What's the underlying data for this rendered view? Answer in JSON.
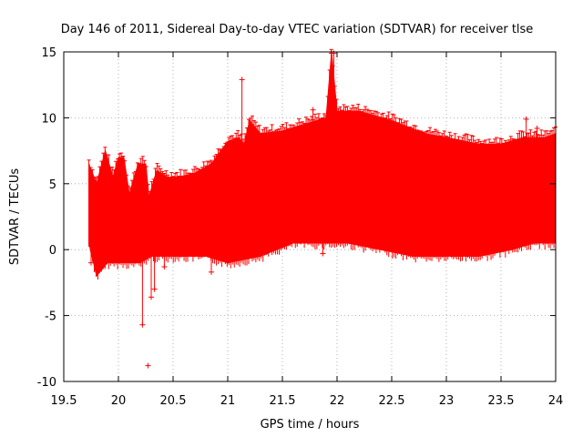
{
  "chart_data": {
    "type": "scatter",
    "title": "Day 146 of 2011, Sidereal Day-to-day VTEC variation (SDTVAR) for receiver tlse",
    "xlabel": "GPS time / hours",
    "ylabel": "SDTVAR / TECUs",
    "xlim": [
      19.5,
      24
    ],
    "ylim": [
      -10,
      15
    ],
    "x_ticks": [
      19.5,
      20,
      20.5,
      21,
      21.5,
      22,
      22.5,
      23,
      23.5,
      24
    ],
    "x_tick_labels": [
      "19.5",
      "20",
      "20.5",
      "21",
      "21.5",
      "22",
      "22.5",
      "23",
      "23.5",
      "24"
    ],
    "y_ticks": [
      -10,
      -5,
      0,
      5,
      10,
      15
    ],
    "y_tick_labels": [
      "-10",
      "-5",
      "0",
      "5",
      "10",
      "15"
    ],
    "grid": true,
    "series": [
      {
        "name": "SDTVAR",
        "color": "#ff0000",
        "style": "errorbars",
        "upper_envelope": [
          {
            "x": 19.73,
            "y": 6.5
          },
          {
            "x": 19.8,
            "y": 5.0
          },
          {
            "x": 19.88,
            "y": 7.5
          },
          {
            "x": 19.95,
            "y": 5.5
          },
          {
            "x": 20.0,
            "y": 7.0
          },
          {
            "x": 20.05,
            "y": 7.0
          },
          {
            "x": 20.1,
            "y": 4.2
          },
          {
            "x": 20.18,
            "y": 6.5
          },
          {
            "x": 20.25,
            "y": 6.5
          },
          {
            "x": 20.28,
            "y": 4.0
          },
          {
            "x": 20.35,
            "y": 6.0
          },
          {
            "x": 20.45,
            "y": 5.5
          },
          {
            "x": 20.55,
            "y": 5.5
          },
          {
            "x": 20.7,
            "y": 5.8
          },
          {
            "x": 20.85,
            "y": 6.5
          },
          {
            "x": 21.0,
            "y": 8.2
          },
          {
            "x": 21.1,
            "y": 8.5
          },
          {
            "x": 21.15,
            "y": 8.0
          },
          {
            "x": 21.2,
            "y": 9.8
          },
          {
            "x": 21.3,
            "y": 8.8
          },
          {
            "x": 21.5,
            "y": 9.0
          },
          {
            "x": 21.7,
            "y": 9.5
          },
          {
            "x": 21.9,
            "y": 10.0
          },
          {
            "x": 21.95,
            "y": 15.0
          },
          {
            "x": 22.0,
            "y": 10.5
          },
          {
            "x": 22.2,
            "y": 10.5
          },
          {
            "x": 22.5,
            "y": 9.8
          },
          {
            "x": 22.8,
            "y": 8.8
          },
          {
            "x": 23.0,
            "y": 8.5
          },
          {
            "x": 23.3,
            "y": 8.0
          },
          {
            "x": 23.5,
            "y": 8.0
          },
          {
            "x": 23.7,
            "y": 8.5
          },
          {
            "x": 23.9,
            "y": 8.5
          },
          {
            "x": 24.0,
            "y": 8.8
          }
        ],
        "lower_envelope": [
          {
            "x": 19.73,
            "y": 0.5
          },
          {
            "x": 19.8,
            "y": -2.0
          },
          {
            "x": 19.9,
            "y": -1.0
          },
          {
            "x": 20.0,
            "y": -1.0
          },
          {
            "x": 20.2,
            "y": -1.0
          },
          {
            "x": 20.3,
            "y": -0.5
          },
          {
            "x": 20.5,
            "y": -0.5
          },
          {
            "x": 20.8,
            "y": -0.5
          },
          {
            "x": 21.0,
            "y": -1.0
          },
          {
            "x": 21.3,
            "y": -0.5
          },
          {
            "x": 21.6,
            "y": 0.5
          },
          {
            "x": 21.9,
            "y": 0.5
          },
          {
            "x": 22.1,
            "y": 0.5
          },
          {
            "x": 22.4,
            "y": 0.0
          },
          {
            "x": 22.7,
            "y": -0.5
          },
          {
            "x": 23.0,
            "y": -0.5
          },
          {
            "x": 23.3,
            "y": -0.5
          },
          {
            "x": 23.6,
            "y": 0.0
          },
          {
            "x": 23.8,
            "y": 0.5
          },
          {
            "x": 24.0,
            "y": 0.5
          }
        ],
        "outliers": [
          {
            "x": 19.75,
            "y": -1.0
          },
          {
            "x": 20.27,
            "y": -8.8
          },
          {
            "x": 20.22,
            "y": -5.7
          },
          {
            "x": 20.3,
            "y": -3.6
          },
          {
            "x": 20.33,
            "y": -3.0
          },
          {
            "x": 20.42,
            "y": -1.3
          },
          {
            "x": 20.85,
            "y": -1.7
          },
          {
            "x": 21.13,
            "y": 12.9
          },
          {
            "x": 21.87,
            "y": -0.3
          },
          {
            "x": 21.95,
            "y": 14.9
          },
          {
            "x": 21.97,
            "y": 14.9
          },
          {
            "x": 21.78,
            "y": 10.6
          },
          {
            "x": 23.73,
            "y": 9.9
          },
          {
            "x": 23.83,
            "y": 9.2
          }
        ]
      }
    ]
  }
}
